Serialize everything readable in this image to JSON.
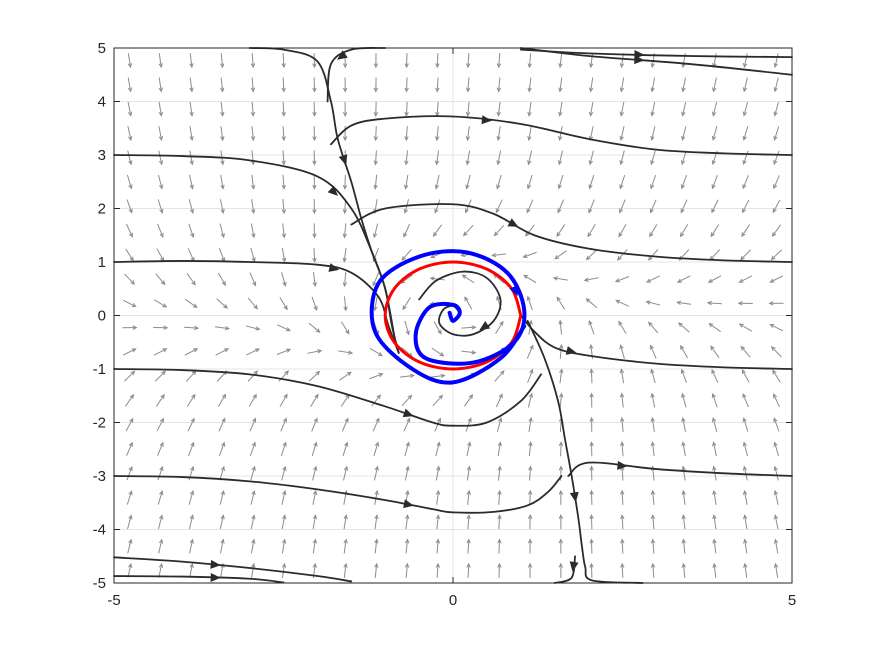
{
  "chart_data": {
    "type": "line",
    "title": "",
    "xlabel": "",
    "ylabel": "",
    "xlim": [
      -5,
      5
    ],
    "ylim": [
      -5,
      5
    ],
    "grid": true,
    "x_ticks": [
      "-5",
      "0",
      "5"
    ],
    "y_ticks": [
      "5",
      "4",
      "3",
      "2",
      "1",
      "0",
      "-1",
      "-2",
      "-3",
      "-4",
      "-5"
    ],
    "vector_field": {
      "x_range": [
        -5,
        5
      ],
      "y_range": [
        -5,
        5
      ],
      "nx": 22,
      "ny": 22
    },
    "colors": {
      "streamline": "#2b2b2b",
      "vector": "#8c8c8c",
      "limit_cycle": "#ff0000",
      "trajectory": "#0000ff",
      "grid": "#e5e5e5",
      "axes": "#262626"
    },
    "series": [
      {
        "role": "streamline",
        "points": [
          [
            -5,
            -4.87
          ],
          [
            -4,
            -4.88
          ],
          [
            -3,
            -4.92
          ],
          [
            -2.5,
            -4.99
          ]
        ]
      },
      {
        "role": "streamline",
        "points": [
          [
            -5,
            -4.52
          ],
          [
            -4,
            -4.6
          ],
          [
            -3,
            -4.72
          ],
          [
            -2,
            -4.87
          ],
          [
            -1.5,
            -4.97
          ]
        ]
      },
      {
        "role": "streamline",
        "points": [
          [
            -5,
            -3.0
          ],
          [
            -4,
            -3.02
          ],
          [
            -3,
            -3.1
          ],
          [
            -2,
            -3.25
          ],
          [
            -1,
            -3.45
          ],
          [
            -0.3,
            -3.62
          ],
          [
            0,
            -3.68
          ],
          [
            0.6,
            -3.67
          ],
          [
            1.1,
            -3.55
          ],
          [
            1.4,
            -3.3
          ],
          [
            1.6,
            -3.0
          ]
        ]
      },
      {
        "role": "streamline",
        "points": [
          [
            -5,
            -1.0
          ],
          [
            -4,
            -1.02
          ],
          [
            -3,
            -1.1
          ],
          [
            -2,
            -1.32
          ],
          [
            -1,
            -1.7
          ],
          [
            -0.3,
            -2.0
          ],
          [
            0,
            -2.06
          ],
          [
            0.5,
            -2.0
          ],
          [
            1.0,
            -1.6
          ],
          [
            1.3,
            -1.1
          ]
        ]
      },
      {
        "role": "streamline",
        "points": [
          [
            -5,
            1.0
          ],
          [
            -4,
            1.02
          ],
          [
            -3,
            1.0
          ],
          [
            -2,
            0.95
          ],
          [
            -1.5,
            0.8
          ],
          [
            -1.1,
            0.35
          ],
          [
            -0.95,
            -0.2
          ],
          [
            -0.8,
            -0.7
          ]
        ]
      },
      {
        "role": "streamline",
        "points": [
          [
            -5,
            3.0
          ],
          [
            -4,
            2.98
          ],
          [
            -3,
            2.9
          ],
          [
            -2,
            2.6
          ],
          [
            -1.5,
            2.0
          ],
          [
            -1.2,
            1.2
          ],
          [
            -1.0,
            0.5
          ],
          [
            -0.9,
            -0.2
          ],
          [
            -0.8,
            -0.7
          ]
        ]
      },
      {
        "role": "streamline",
        "points": [
          [
            -3,
            5.0
          ],
          [
            -2.5,
            4.97
          ],
          [
            -2.0,
            4.75
          ],
          [
            -1.8,
            4.0
          ],
          [
            -1.7,
            3.3
          ],
          [
            -1.5,
            2.5
          ],
          [
            -1.35,
            1.8
          ],
          [
            -1.2,
            1.2
          ],
          [
            -1.0,
            0.5
          ],
          [
            -0.85,
            -0.5
          ]
        ]
      },
      {
        "role": "streamline",
        "points": [
          [
            -1.0,
            5.0
          ],
          [
            -1.5,
            4.97
          ],
          [
            -1.8,
            4.7
          ],
          [
            -1.85,
            4.0
          ]
        ]
      },
      {
        "role": "streamline",
        "points": [
          [
            1.0,
            5.0
          ],
          [
            2.0,
            4.85
          ],
          [
            3.5,
            4.7
          ],
          [
            5,
            4.5
          ]
        ]
      },
      {
        "role": "streamline",
        "points": [
          [
            1.0,
            4.97
          ],
          [
            2.0,
            4.9
          ],
          [
            3.5,
            4.85
          ],
          [
            5,
            4.83
          ]
        ]
      },
      {
        "role": "streamline",
        "points": [
          [
            -1.8,
            3.2
          ],
          [
            -1.5,
            3.55
          ],
          [
            -1.0,
            3.68
          ],
          [
            0,
            3.72
          ],
          [
            1.0,
            3.58
          ],
          [
            2.0,
            3.3
          ],
          [
            3.0,
            3.1
          ],
          [
            4.0,
            3.03
          ],
          [
            5,
            3.0
          ]
        ]
      },
      {
        "role": "streamline",
        "points": [
          [
            -1.5,
            1.7
          ],
          [
            -1.0,
            2.0
          ],
          [
            0,
            2.08
          ],
          [
            0.6,
            1.9
          ],
          [
            1.2,
            1.5
          ],
          [
            2.0,
            1.25
          ],
          [
            3.0,
            1.1
          ],
          [
            4.0,
            1.03
          ],
          [
            5,
            1.0
          ]
        ]
      },
      {
        "role": "streamline",
        "points": [
          [
            1.0,
            0.0
          ],
          [
            1.2,
            -0.3
          ],
          [
            1.5,
            -0.6
          ],
          [
            2.0,
            -0.75
          ],
          [
            3.0,
            -0.9
          ],
          [
            4.0,
            -0.97
          ],
          [
            5,
            -1.0
          ]
        ]
      },
      {
        "role": "streamline",
        "points": [
          [
            1.1,
            -0.1
          ],
          [
            1.35,
            -0.8
          ],
          [
            1.55,
            -1.6
          ],
          [
            1.65,
            -2.3
          ],
          [
            1.75,
            -3.0
          ],
          [
            1.85,
            -3.8
          ],
          [
            1.9,
            -4.3
          ],
          [
            1.95,
            -4.7
          ],
          [
            2.05,
            -4.95
          ],
          [
            2.8,
            -5.0
          ]
        ]
      },
      {
        "role": "streamline",
        "points": [
          [
            1.7,
            -3.0
          ],
          [
            2.0,
            -2.75
          ],
          [
            3.0,
            -2.87
          ],
          [
            4.0,
            -2.95
          ],
          [
            5,
            -3.0
          ]
        ]
      },
      {
        "role": "streamline",
        "points": [
          [
            1.8,
            -4.5
          ],
          [
            1.75,
            -4.9
          ],
          [
            1.5,
            -5.0
          ]
        ]
      },
      {
        "role": "streamline",
        "points": [
          [
            -0.5,
            0.3
          ],
          [
            -0.25,
            0.65
          ],
          [
            0.15,
            0.82
          ],
          [
            0.5,
            0.7
          ],
          [
            0.7,
            0.3
          ],
          [
            0.6,
            -0.1
          ],
          [
            0.3,
            -0.35
          ],
          [
            0,
            -0.35
          ],
          [
            -0.2,
            -0.15
          ],
          [
            -0.15,
            0.1
          ],
          [
            0,
            0.18
          ],
          [
            0.1,
            0.05
          ]
        ]
      },
      {
        "role": "limit_cycle",
        "points": [
          [
            1,
            0
          ],
          [
            0.866,
            0.5
          ],
          [
            0.5,
            0.866
          ],
          [
            0,
            1
          ],
          [
            -0.5,
            0.866
          ],
          [
            -0.866,
            0.5
          ],
          [
            -1,
            0
          ],
          [
            -0.866,
            -0.5
          ],
          [
            -0.5,
            -0.866
          ],
          [
            0,
            -1
          ],
          [
            0.5,
            -0.866
          ],
          [
            0.866,
            -0.5
          ],
          [
            1,
            0
          ]
        ]
      },
      {
        "role": "trajectory",
        "points": [
          [
            1.05,
            -0.2
          ],
          [
            0.7,
            -0.8
          ],
          [
            0,
            -1.25
          ],
          [
            -0.6,
            -1.0
          ],
          [
            -1.15,
            -0.3
          ],
          [
            -1.1,
            0.6
          ],
          [
            -0.5,
            1.1
          ],
          [
            0.2,
            1.18
          ],
          [
            0.8,
            0.8
          ],
          [
            1.05,
            0.1
          ],
          [
            0.9,
            -0.5
          ],
          [
            0.3,
            -0.88
          ],
          [
            -0.4,
            -0.8
          ],
          [
            -0.55,
            -0.35
          ],
          [
            -0.35,
            0.15
          ],
          [
            0,
            0.2
          ],
          [
            0.1,
            0.05
          ],
          [
            0,
            -0.1
          ],
          [
            -0.05,
            0.05
          ]
        ]
      }
    ]
  }
}
